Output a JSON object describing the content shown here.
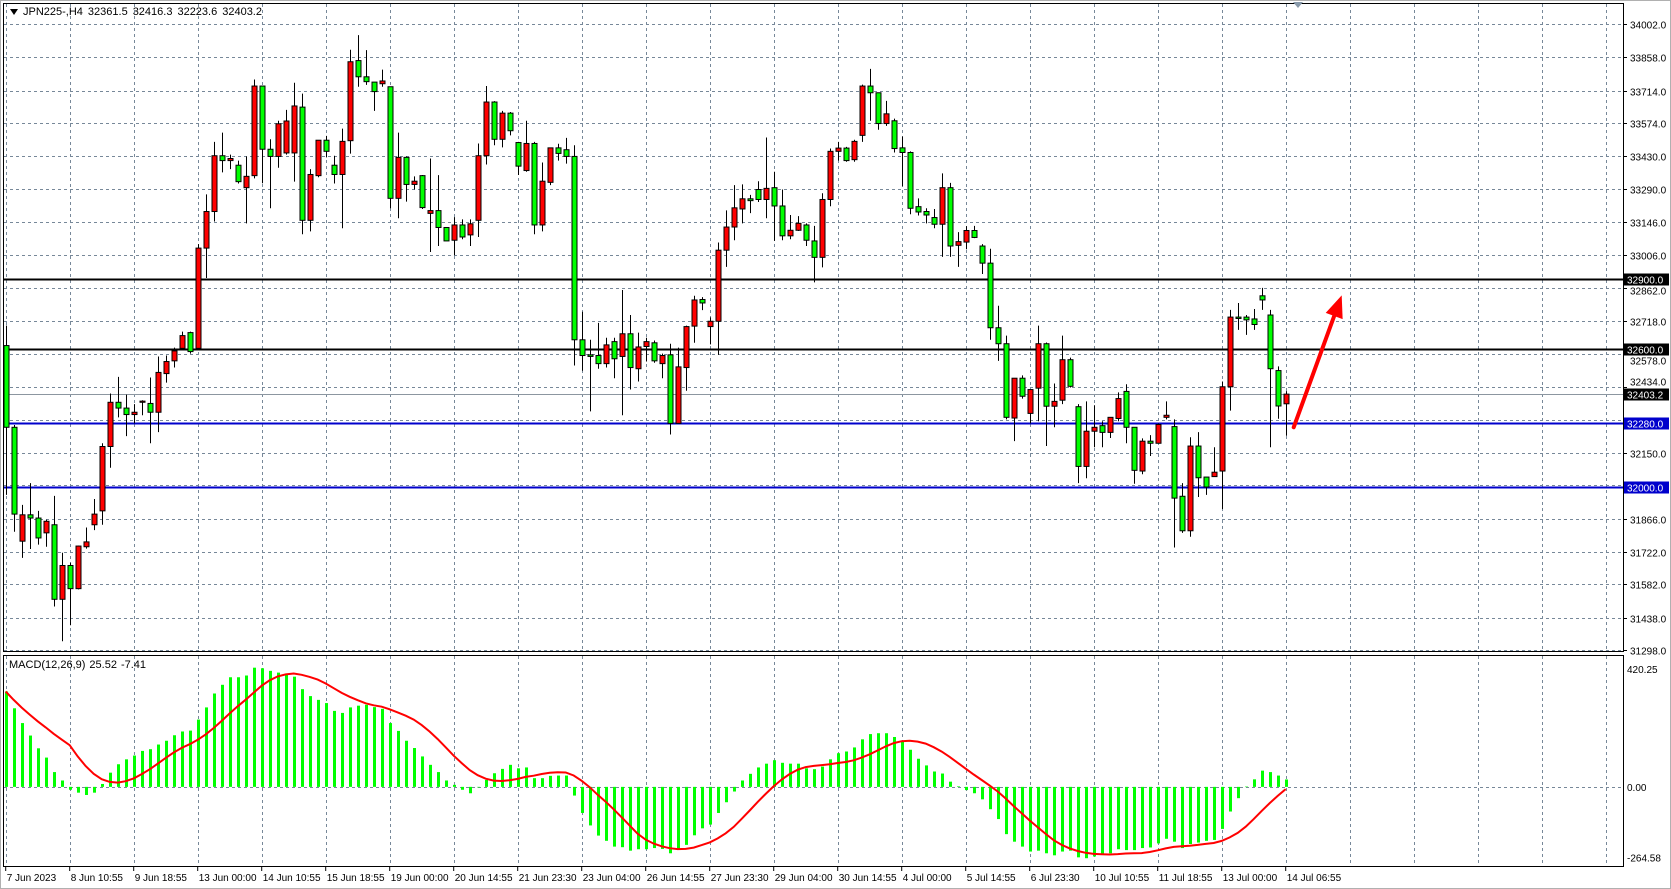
{
  "header": {
    "symbol": "JPN225-,H4",
    "open": "32361.5",
    "high": "32416.3",
    "low": "32223.6",
    "close": "32403.2"
  },
  "indicator": {
    "name": "MACD(12,26,9)",
    "main": "25.52",
    "signal": "-7.41"
  },
  "colors": {
    "bull": "#ff0000",
    "bear": "#00ff00",
    "grid": "#778899",
    "macd_hist": "#00ff00",
    "macd_signal": "#ff0000",
    "arrow": "#ff0000"
  },
  "chart_data": {
    "type": "candlestick",
    "title": "",
    "ylim": [
      31298,
      34002
    ],
    "grid": true,
    "price_ticks": [
      "34002.0",
      "33858.0",
      "33714.0",
      "33574.0",
      "33430.0",
      "33290.0",
      "33146.0",
      "33006.0",
      "32862.0",
      "32718.0",
      "32578.0",
      "32434.0",
      "32150.0",
      "31866.0",
      "31722.0",
      "31582.0",
      "31438.0",
      "31298.0"
    ],
    "time_labels": [
      "7 Jun 2023",
      "8 Jun 10:55",
      "9 Jun 18:55",
      "13 Jun 00:00",
      "14 Jun 10:55",
      "15 Jun 18:55",
      "19 Jun 00:00",
      "20 Jun 14:55",
      "21 Jun 23:30",
      "23 Jun 04:00",
      "26 Jun 14:55",
      "27 Jun 23:30",
      "29 Jun 04:00",
      "30 Jun 14:55",
      "4 Jul 00:00",
      "5 Jul 14:55",
      "6 Jul 23:30",
      "10 Jul 10:55",
      "11 Jul 18:55",
      "13 Jul 00:00",
      "14 Jul 06:55"
    ],
    "time_label_every_bars": 8,
    "levels": [
      {
        "price": 32900.0,
        "label": "32900.0",
        "color": "#000000"
      },
      {
        "price": 32600.0,
        "label": "32600.0",
        "color": "#000000"
      },
      {
        "price": 32280.0,
        "label": "32280.0",
        "color": "#0000cc"
      },
      {
        "price": 32000.0,
        "label": "32000.0",
        "color": "#0000cc"
      }
    ],
    "current_price": {
      "price": 32403.2,
      "label": "32403.2"
    },
    "arrow": {
      "from": {
        "bar": 161,
        "price": 32260
      },
      "to": {
        "bar": 167,
        "price": 32830
      }
    },
    "ohlc": [
      [
        32613,
        32699,
        31968,
        32260
      ],
      [
        32260,
        32270,
        31809,
        31885
      ],
      [
        31768,
        31925,
        31696,
        31882
      ],
      [
        31882,
        32019,
        31734,
        31868
      ],
      [
        31868,
        31899,
        31753,
        31782
      ],
      [
        31804,
        31861,
        31744,
        31854
      ],
      [
        31839,
        31964,
        31486,
        31517
      ],
      [
        31517,
        31718,
        31336,
        31663
      ],
      [
        31663,
        31675,
        31405,
        31563
      ],
      [
        31563,
        31749,
        31560,
        31747
      ],
      [
        31744,
        31827,
        31736,
        31765
      ],
      [
        31839,
        31950,
        31816,
        31885
      ],
      [
        31899,
        32191,
        31839,
        32177
      ],
      [
        32177,
        32406,
        32085,
        32368
      ],
      [
        32368,
        32478,
        32303,
        32343
      ],
      [
        32343,
        32401,
        32222,
        32315
      ],
      [
        32315,
        32360,
        32277,
        32325
      ],
      [
        32368,
        32377,
        32312,
        32373
      ],
      [
        32363,
        32475,
        32191,
        32325
      ],
      [
        32325,
        32566,
        32239,
        32497
      ],
      [
        32492,
        32570,
        32453,
        32544
      ],
      [
        32547,
        32604,
        32518,
        32590
      ],
      [
        32601,
        32673,
        32601,
        32656
      ],
      [
        32669,
        32673,
        32578,
        32587
      ],
      [
        32601,
        33051,
        32601,
        33034
      ],
      [
        33034,
        33266,
        32905,
        33192
      ],
      [
        33192,
        33493,
        33149,
        33433
      ],
      [
        33433,
        33533,
        33361,
        33412
      ],
      [
        33412,
        33438,
        33375,
        33421
      ],
      [
        33392,
        33412,
        33313,
        33321
      ],
      [
        33295,
        33430,
        33141,
        33344
      ],
      [
        33347,
        33762,
        33335,
        33734
      ],
      [
        33734,
        33734,
        33314,
        33461
      ],
      [
        33461,
        33504,
        33206,
        33430
      ],
      [
        33430,
        33584,
        33381,
        33571
      ],
      [
        33445,
        33631,
        33438,
        33583
      ],
      [
        33445,
        33748,
        33321,
        33648
      ],
      [
        33643,
        33701,
        33094,
        33154
      ],
      [
        33154,
        33375,
        33106,
        33352
      ],
      [
        33347,
        33500,
        33340,
        33500
      ],
      [
        33500,
        33519,
        33426,
        33452
      ],
      [
        33392,
        33433,
        33313,
        33352
      ],
      [
        33352,
        33550,
        33120,
        33495
      ],
      [
        33498,
        33891,
        33442,
        33839
      ],
      [
        33844,
        33954,
        33731,
        33774
      ],
      [
        33774,
        33889,
        33739,
        33753
      ],
      [
        33751,
        33751,
        33627,
        33710
      ],
      [
        33744,
        33805,
        33731,
        33756
      ],
      [
        33731,
        33731,
        33206,
        33249
      ],
      [
        33249,
        33533,
        33163,
        33426
      ],
      [
        33426,
        33430,
        33235,
        33309
      ],
      [
        33309,
        33344,
        33287,
        33323
      ],
      [
        33347,
        33350,
        33203,
        33209
      ],
      [
        33184,
        33421,
        33017,
        33196
      ],
      [
        33196,
        33349,
        33043,
        33123
      ],
      [
        33123,
        33123,
        33065,
        33065
      ],
      [
        33068,
        33168,
        33003,
        33134
      ],
      [
        33134,
        33158,
        33072,
        33082
      ],
      [
        33091,
        33158,
        33043,
        33139
      ],
      [
        33154,
        33486,
        33082,
        33433
      ],
      [
        33433,
        33734,
        33395,
        33665
      ],
      [
        33665,
        33669,
        33478,
        33504
      ],
      [
        33504,
        33627,
        33469,
        33617
      ],
      [
        33617,
        33622,
        33521,
        33541
      ],
      [
        33490,
        33493,
        33350,
        33388
      ],
      [
        33369,
        33584,
        33364,
        33486
      ],
      [
        33486,
        33493,
        33094,
        33134
      ],
      [
        33134,
        33404,
        33106,
        33323
      ],
      [
        33318,
        33467,
        33306,
        33467
      ],
      [
        33467,
        33485,
        33412,
        33443
      ],
      [
        33459,
        33510,
        33399,
        33430
      ],
      [
        33430,
        33478,
        32527,
        32638
      ],
      [
        32638,
        32759,
        32504,
        32570
      ],
      [
        32573,
        32638,
        32329,
        32566
      ],
      [
        32570,
        32711,
        32513,
        32535
      ],
      [
        32535,
        32647,
        32518,
        32616
      ],
      [
        32630,
        32647,
        32472,
        32556
      ],
      [
        32566,
        32853,
        32312,
        32664
      ],
      [
        32664,
        32745,
        32423,
        32518
      ],
      [
        32513,
        32669,
        32458,
        32607
      ],
      [
        32609,
        32647,
        32544,
        32630
      ],
      [
        32625,
        32635,
        32539,
        32547
      ],
      [
        32535,
        32578,
        32472,
        32570
      ],
      [
        32573,
        32621,
        32229,
        32277
      ],
      [
        32277,
        32604,
        32277,
        32521
      ],
      [
        32518,
        32699,
        32418,
        32695
      ],
      [
        32697,
        32828,
        32625,
        32810
      ],
      [
        32812,
        32822,
        32766,
        32797
      ],
      [
        32695,
        32735,
        32618,
        32718
      ],
      [
        32718,
        33058,
        32573,
        33025
      ],
      [
        33025,
        33197,
        32953,
        33125
      ],
      [
        33125,
        33306,
        33068,
        33208
      ],
      [
        33203,
        33309,
        33141,
        33247
      ],
      [
        33247,
        33264,
        33185,
        33239
      ],
      [
        33287,
        33323,
        33233,
        33244
      ],
      [
        33244,
        33512,
        33163,
        33292
      ],
      [
        33295,
        33364,
        33065,
        33216
      ],
      [
        33216,
        33287,
        33068,
        33087
      ],
      [
        33087,
        33177,
        33072,
        33111
      ],
      [
        33111,
        33172,
        33108,
        33141
      ],
      [
        33134,
        33141,
        33043,
        33068
      ],
      [
        33065,
        33130,
        32886,
        32994
      ],
      [
        32994,
        33271,
        32951,
        33244
      ],
      [
        33244,
        33464,
        33215,
        33452
      ],
      [
        33452,
        33493,
        33412,
        33466
      ],
      [
        33466,
        33471,
        33407,
        33412
      ],
      [
        33416,
        33502,
        33407,
        33495
      ],
      [
        33521,
        33740,
        33493,
        33734
      ],
      [
        33734,
        33808,
        33584,
        33705
      ],
      [
        33705,
        33705,
        33545,
        33572
      ],
      [
        33572,
        33670,
        33562,
        33614
      ],
      [
        33584,
        33593,
        33447,
        33464
      ],
      [
        33467,
        33516,
        33301,
        33447
      ],
      [
        33447,
        33452,
        33180,
        33206
      ],
      [
        33213,
        33249,
        33175,
        33190
      ],
      [
        33192,
        33206,
        33141,
        33177
      ],
      [
        33166,
        33203,
        33120,
        33137
      ],
      [
        33137,
        33357,
        32996,
        33295
      ],
      [
        33295,
        33316,
        32996,
        33043
      ],
      [
        33046,
        33103,
        32953,
        33062
      ],
      [
        33060,
        33129,
        33029,
        33110
      ],
      [
        33110,
        33130,
        33077,
        33080
      ],
      [
        33043,
        33051,
        32922,
        32969
      ],
      [
        32969,
        33031,
        32638,
        32690
      ],
      [
        32690,
        32785,
        32547,
        32621
      ],
      [
        32621,
        32656,
        32294,
        32303
      ],
      [
        32300,
        32472,
        32200,
        32472
      ],
      [
        32472,
        32484,
        32384,
        32394
      ],
      [
        32320,
        32423,
        32277,
        32423
      ],
      [
        32429,
        32699,
        32286,
        32621
      ],
      [
        32621,
        32626,
        32179,
        32351
      ],
      [
        32351,
        32449,
        32260,
        32372
      ],
      [
        32377,
        32656,
        32360,
        32552
      ],
      [
        32552,
        32561,
        32432,
        32437
      ],
      [
        32349,
        32360,
        32019,
        32091
      ],
      [
        32091,
        32372,
        32040,
        32243
      ],
      [
        32243,
        32355,
        32174,
        32260
      ],
      [
        32267,
        32286,
        32174,
        32238
      ],
      [
        32238,
        32303,
        32214,
        32303
      ],
      [
        32298,
        32411,
        32286,
        32384
      ],
      [
        32415,
        32446,
        32191,
        32260
      ],
      [
        32260,
        32260,
        32016,
        32074
      ],
      [
        32071,
        32212,
        32057,
        32200
      ],
      [
        32200,
        32226,
        32136,
        32191
      ],
      [
        32191,
        32277,
        32191,
        32272
      ],
      [
        32303,
        32372,
        32294,
        32312
      ],
      [
        32263,
        32294,
        31741,
        31954
      ],
      [
        31962,
        32019,
        31804,
        31813
      ],
      [
        31813,
        32217,
        31787,
        32179
      ],
      [
        32179,
        32239,
        31959,
        32042
      ],
      [
        32045,
        32045,
        31968,
        32002
      ],
      [
        32047,
        32174,
        32047,
        32066
      ],
      [
        32071,
        32458,
        31907,
        32435
      ],
      [
        32435,
        32767,
        32332,
        32736
      ],
      [
        32736,
        32797,
        32681,
        32730
      ],
      [
        32736,
        32745,
        32659,
        32724
      ],
      [
        32728,
        32771,
        32681,
        32704
      ],
      [
        32828,
        32862,
        32767,
        32810
      ],
      [
        32745,
        32767,
        32174,
        32513
      ],
      [
        32505,
        32523,
        32297,
        32352
      ],
      [
        32361.5,
        32416.3,
        32223.6,
        32403.2
      ]
    ],
    "macd": {
      "ylim": [
        -264.58,
        420.25
      ],
      "ticks": [
        "420.25",
        "0.00",
        "-264.58"
      ],
      "histogram": [
        329,
        271,
        220,
        177,
        133,
        101,
        51,
        22,
        -10,
        -20,
        -28,
        -20,
        10,
        49,
        78,
        95,
        108,
        124,
        130,
        146,
        159,
        178,
        191,
        194,
        232,
        274,
        322,
        352,
        378,
        378,
        384,
        411,
        409,
        400,
        394,
        386,
        380,
        337,
        313,
        300,
        289,
        262,
        255,
        274,
        280,
        283,
        275,
        269,
        220,
        193,
        159,
        134,
        105,
        76,
        51,
        22,
        7,
        -10,
        -22,
        0,
        24,
        47,
        62,
        76,
        64,
        67,
        30,
        30,
        38,
        39,
        39,
        -30,
        -90,
        -133,
        -168,
        -186,
        -206,
        -208,
        -220,
        -215,
        -215,
        -211,
        -214,
        -229,
        -214,
        -200,
        -167,
        -143,
        -130,
        -90,
        -53,
        -16,
        22,
        45,
        67,
        80,
        92,
        83,
        80,
        80,
        64,
        61,
        70,
        95,
        116,
        122,
        136,
        164,
        182,
        185,
        185,
        172,
        156,
        128,
        97,
        74,
        53,
        46,
        18,
        2,
        -11,
        -22,
        -43,
        -77,
        -111,
        -163,
        -189,
        -206,
        -223,
        -220,
        -229,
        -236,
        -223,
        -220,
        -243,
        -246,
        -240,
        -234,
        -229,
        -215,
        -218,
        -218,
        -211,
        -209,
        -195,
        -179,
        -189,
        -211,
        -197,
        -192,
        -186,
        -183,
        -145,
        -85,
        -39,
        1,
        26,
        56,
        51,
        39,
        25.52
      ]
    }
  }
}
